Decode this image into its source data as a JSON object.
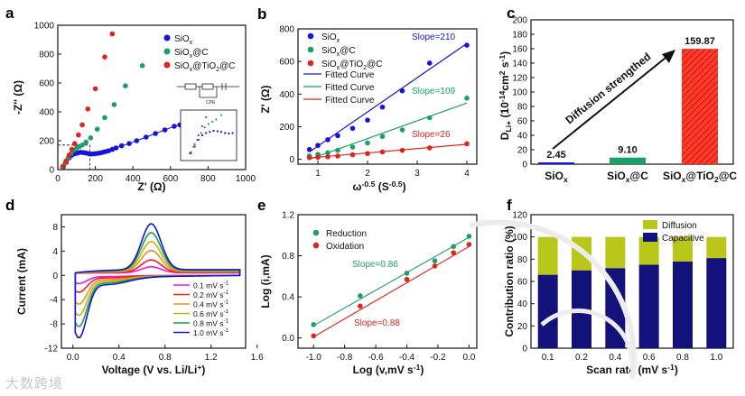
{
  "watermark": "大数跨境",
  "chart_data": [
    {
      "id": "a",
      "panel_label": "a",
      "type": "scatter",
      "xlabel": "Z' (Ω)",
      "ylabel": "-Z'' (Ω)",
      "xlim": [
        0,
        1000
      ],
      "ylim": [
        0,
        1000
      ],
      "xticks": [
        "0",
        "200",
        "400",
        "600",
        "800",
        "1000"
      ],
      "yticks": [
        "0",
        "200",
        "400",
        "600",
        "800",
        "1000"
      ],
      "legend": [
        "SiOx",
        "SiOx@C",
        "SiOx@TiO2@C"
      ],
      "series": [
        {
          "name": "SiOx",
          "color": "#1414d8",
          "x": [
            30,
            45,
            60,
            75,
            90,
            105,
            120,
            135,
            150,
            165,
            180,
            195,
            210,
            225,
            240,
            255,
            270,
            290,
            310,
            340,
            380,
            420,
            470,
            520,
            570,
            620,
            650
          ],
          "y": [
            20,
            50,
            80,
            100,
            110,
            115,
            120,
            118,
            115,
            110,
            108,
            110,
            112,
            115,
            120,
            125,
            130,
            140,
            150,
            165,
            180,
            200,
            225,
            250,
            275,
            300,
            310
          ]
        },
        {
          "name": "SiOx@C",
          "color": "#1a9e6a",
          "x": [
            25,
            40,
            55,
            70,
            85,
            100,
            115,
            130,
            150,
            175,
            210,
            250,
            300,
            360,
            450
          ],
          "y": [
            20,
            50,
            80,
            110,
            135,
            150,
            160,
            170,
            190,
            220,
            280,
            360,
            450,
            580,
            720
          ]
        },
        {
          "name": "SiOx@TiO2@C",
          "color": "#e0231c",
          "x": [
            30,
            45,
            60,
            75,
            90,
            110,
            130,
            160,
            200,
            250,
            290
          ],
          "y": [
            25,
            60,
            100,
            140,
            180,
            240,
            310,
            420,
            560,
            780,
            940
          ]
        }
      ],
      "inset_label": "CPE"
    },
    {
      "id": "b",
      "panel_label": "b",
      "type": "scatter",
      "xlabel": "ω^-0.5 (S^-0.5)",
      "ylabel": "Z' (Ω)",
      "xlim": [
        0.6,
        4.2
      ],
      "ylim": [
        -30,
        800
      ],
      "xticks": [
        "1",
        "2",
        "3",
        "4"
      ],
      "yticks": [
        "0",
        "200",
        "400",
        "600",
        "800"
      ],
      "legend": [
        "SiOx",
        "SiOx@C",
        "SiOx@TiO2@C",
        "Fitted Curve",
        "Fitted Curve",
        "Fitted Curve"
      ],
      "series": [
        {
          "name": "SiOx",
          "color": "#1414d8",
          "x": [
            0.83,
            1.0,
            1.2,
            1.4,
            1.7,
            2.0,
            2.3,
            2.7,
            3.25,
            4.0
          ],
          "y": [
            60,
            85,
            120,
            145,
            190,
            240,
            320,
            420,
            590,
            700
          ]
        },
        {
          "name": "SiOx@C",
          "color": "#1a9e6a",
          "x": [
            0.83,
            1.0,
            1.2,
            1.4,
            1.7,
            2.0,
            2.3,
            2.7,
            3.25,
            4.0
          ],
          "y": [
            20,
            30,
            40,
            55,
            75,
            100,
            140,
            180,
            255,
            375
          ]
        },
        {
          "name": "SiOx@TiO2@C",
          "color": "#e0231c",
          "x": [
            0.83,
            1.0,
            1.2,
            1.4,
            1.7,
            2.0,
            2.3,
            2.7,
            3.25,
            4.0
          ],
          "y": [
            10,
            12,
            15,
            20,
            28,
            35,
            45,
            55,
            70,
            95
          ]
        }
      ],
      "fits": [
        {
          "color": "#1414d8",
          "x": [
            0.83,
            4.0
          ],
          "y": [
            45,
            710
          ]
        },
        {
          "color": "#1a9e6a",
          "x": [
            0.83,
            4.0
          ],
          "y": [
            0,
            345
          ]
        },
        {
          "color": "#e0231c",
          "x": [
            0.83,
            4.0
          ],
          "y": [
            8,
            92
          ]
        }
      ],
      "annotations": [
        "Slope=210",
        "Slope=109",
        "Slope=26"
      ]
    },
    {
      "id": "c",
      "panel_label": "c",
      "type": "bar",
      "ylabel": "D_Li+ (10^-14 cm^2 s^-1)",
      "ylim": [
        0,
        200
      ],
      "yticks": [
        "0",
        "20",
        "40",
        "60",
        "80",
        "100",
        "120",
        "140",
        "160",
        "180",
        "200"
      ],
      "categories": [
        "SiOx",
        "SiOx@C",
        "SiOx@TiO2@C"
      ],
      "values": [
        2.45,
        9.1,
        159.87
      ],
      "value_labels": [
        "2.45",
        "9.10",
        "159.87"
      ],
      "colors": [
        "#1414d8",
        "#1a9e6a",
        "#e0231c"
      ],
      "annotation": "Diffusion strengthed"
    },
    {
      "id": "d",
      "panel_label": "d",
      "type": "line",
      "xlabel": "Voltage (V vs. Li/Li+)",
      "ylabel": "Current (mA)",
      "xlim": [
        -0.1,
        1.5
      ],
      "ylim": [
        -12,
        10
      ],
      "xticks": [
        "0.0",
        "0.4",
        "0.8",
        "1.2",
        "1.6"
      ],
      "yticks": [
        "-12",
        "-8",
        "-4",
        "0",
        "4",
        "8"
      ],
      "series": [
        {
          "name": "0.1 mV s-1",
          "color": "#ee16ee",
          "scale": 0.13
        },
        {
          "name": "0.2 mV s-1",
          "color": "#f4201c",
          "scale": 0.27
        },
        {
          "name": "0.4 mV s-1",
          "color": "#f58a18",
          "scale": 0.46
        },
        {
          "name": "0.6 mV s-1",
          "color": "#c2b312",
          "scale": 0.64
        },
        {
          "name": "0.8 mV s-1",
          "color": "#19a049",
          "scale": 0.82
        },
        {
          "name": "1.0 mV s-1",
          "color": "#1414d8",
          "scale": 1.0
        }
      ]
    },
    {
      "id": "e",
      "panel_label": "e",
      "type": "scatter",
      "xlabel": "Log (v,mV s-1)",
      "ylabel": "Log (i,mA)",
      "xlim": [
        -1.1,
        0.05
      ],
      "ylim": [
        -0.1,
        1.2
      ],
      "xticks": [
        "-1.0",
        "-0.8",
        "-0.6",
        "-0.4",
        "-0.2",
        "0.0"
      ],
      "yticks": [
        "0.0",
        "0.4",
        "0.8",
        "1.2"
      ],
      "legend": [
        "Reduction",
        "Oxidation"
      ],
      "series": [
        {
          "name": "Reduction",
          "color": "#1a9e6a",
          "x": [
            -1.0,
            -0.7,
            -0.4,
            -0.22,
            -0.1,
            0.0
          ],
          "y": [
            0.13,
            0.41,
            0.63,
            0.75,
            0.89,
            0.99
          ]
        },
        {
          "name": "Oxidation",
          "color": "#e0231c",
          "x": [
            -1.0,
            -0.7,
            -0.4,
            -0.22,
            -0.1,
            0.0
          ],
          "y": [
            0.02,
            0.31,
            0.57,
            0.7,
            0.83,
            0.91
          ]
        }
      ],
      "fits": [
        {
          "color": "#1a9e6a",
          "x": [
            -1.0,
            0.0
          ],
          "y": [
            0.12,
            0.98
          ]
        },
        {
          "color": "#e0231c",
          "x": [
            -1.0,
            0.0
          ],
          "y": [
            0.01,
            0.89
          ]
        }
      ],
      "annotations": [
        "Slope=0.86",
        "Slope=0.88"
      ]
    },
    {
      "id": "f",
      "panel_label": "f",
      "type": "bar",
      "xlabel": "Scan rate (mV s-1)",
      "ylabel": "Contribution ratio (%)",
      "ylim": [
        0,
        120
      ],
      "yticks": [
        "0",
        "20",
        "40",
        "60",
        "80",
        "100",
        "120"
      ],
      "categories": [
        "0.1",
        "0.2",
        "0.4",
        "0.6",
        "0.8",
        "1.0"
      ],
      "legend": [
        "Diffusion",
        "Capacitive"
      ],
      "series": [
        {
          "name": "Capacitive",
          "color": "#12127a",
          "values": [
            66,
            70,
            72,
            75,
            78,
            81
          ]
        },
        {
          "name": "Diffusion",
          "color": "#b9c71b",
          "values": [
            34,
            30,
            28,
            25,
            22,
            19
          ]
        }
      ]
    }
  ]
}
